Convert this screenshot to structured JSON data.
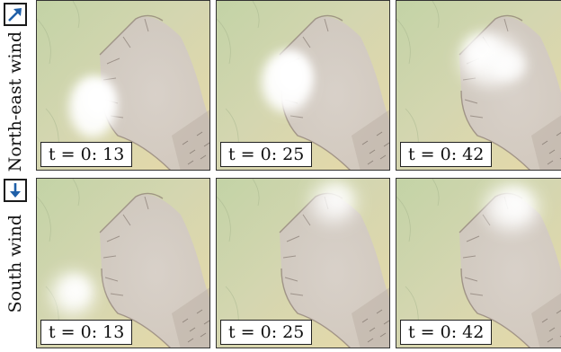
{
  "rows": [
    {
      "label": "North-east wind",
      "arrow_icon": "arrow-north-east-icon",
      "panels": [
        {
          "time_label": "t = 0: 13"
        },
        {
          "time_label": "t = 0: 25"
        },
        {
          "time_label": "t = 0: 42"
        }
      ]
    },
    {
      "label": "South wind",
      "arrow_icon": "arrow-south-icon",
      "panels": [
        {
          "time_label": "t = 0: 13"
        },
        {
          "time_label": "t = 0: 25"
        },
        {
          "time_label": "t = 0: 42"
        }
      ]
    }
  ],
  "colors": {
    "arrow": "#1f5fa8",
    "terrain_plain": "#cdd6a8",
    "terrain_basin": "#d2c8c4",
    "terrain_desert": "#e6d7a6",
    "cloud": "#ffffff"
  }
}
